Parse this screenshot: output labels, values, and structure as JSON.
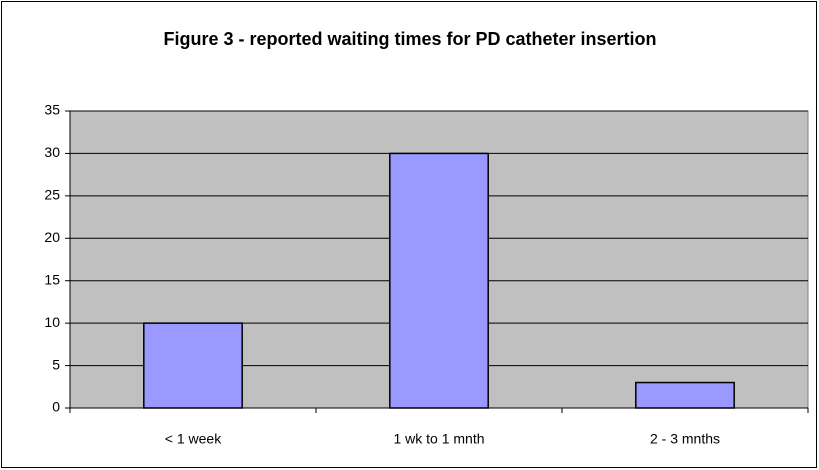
{
  "chart_data": {
    "type": "bar",
    "title": "Figure 3 - reported waiting times for PD catheter insertion",
    "categories": [
      "< 1 week",
      "1 wk to 1 mnth",
      "2 - 3 mnths"
    ],
    "values": [
      10,
      30,
      3
    ],
    "color": "#9999ff",
    "ylim": [
      0,
      35
    ],
    "yticks": [
      0,
      5,
      10,
      15,
      20,
      25,
      30,
      35
    ],
    "grid": true
  }
}
